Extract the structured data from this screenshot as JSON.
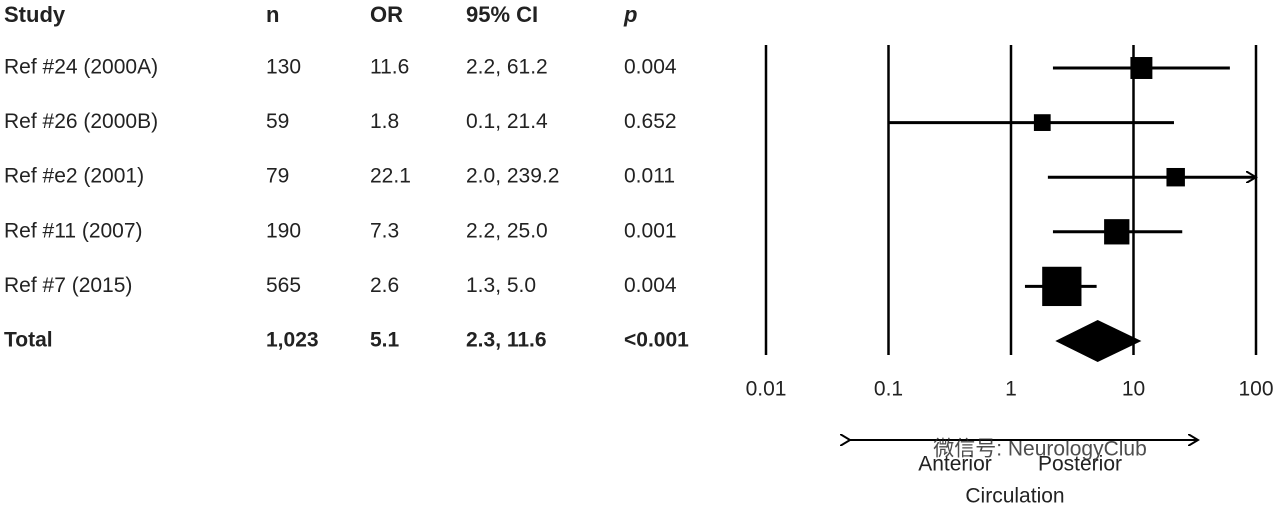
{
  "chart_data": {
    "type": "forest",
    "columns": [
      "Study",
      "n",
      "OR",
      "95% CI",
      "p"
    ],
    "rows": [
      {
        "study": "Ref #24 (2000A)",
        "n": 130,
        "or": 11.6,
        "ci": "2.2, 61.2",
        "lower": 2.2,
        "upper": 61.2,
        "p": "0.004"
      },
      {
        "study": "Ref #26 (2000B)",
        "n": 59,
        "or": 1.8,
        "ci": "0.1, 21.4",
        "lower": 0.1,
        "upper": 21.4,
        "p": "0.652"
      },
      {
        "study": "Ref #e2 (2001)",
        "n": 79,
        "or": 22.1,
        "ci": "2.0, 239.2",
        "lower": 2.0,
        "upper": 239.2,
        "p": "0.011"
      },
      {
        "study": "Ref #11 (2007)",
        "n": 190,
        "or": 7.3,
        "ci": "2.2, 25.0",
        "lower": 2.2,
        "upper": 25.0,
        "p": "0.001"
      },
      {
        "study": "Ref #7 (2015)",
        "n": 565,
        "or": 2.6,
        "ci": "1.3, 5.0",
        "lower": 1.3,
        "upper": 5.0,
        "p": "0.004"
      }
    ],
    "total": {
      "study": "Total",
      "n": "1,023",
      "or": 5.1,
      "ci": "2.3, 11.6",
      "lower": 2.3,
      "upper": 11.6,
      "p": "<0.001"
    },
    "log_x": true,
    "xlim": [
      0.01,
      100
    ],
    "xticks": [
      0.01,
      0.1,
      1,
      10,
      100
    ],
    "grid": true,
    "color": "#000000",
    "annotations": {
      "left": "Anterior",
      "right": "Posterior",
      "axis_label": "Circulation"
    },
    "watermark": "微信号: NeurologyClub"
  }
}
